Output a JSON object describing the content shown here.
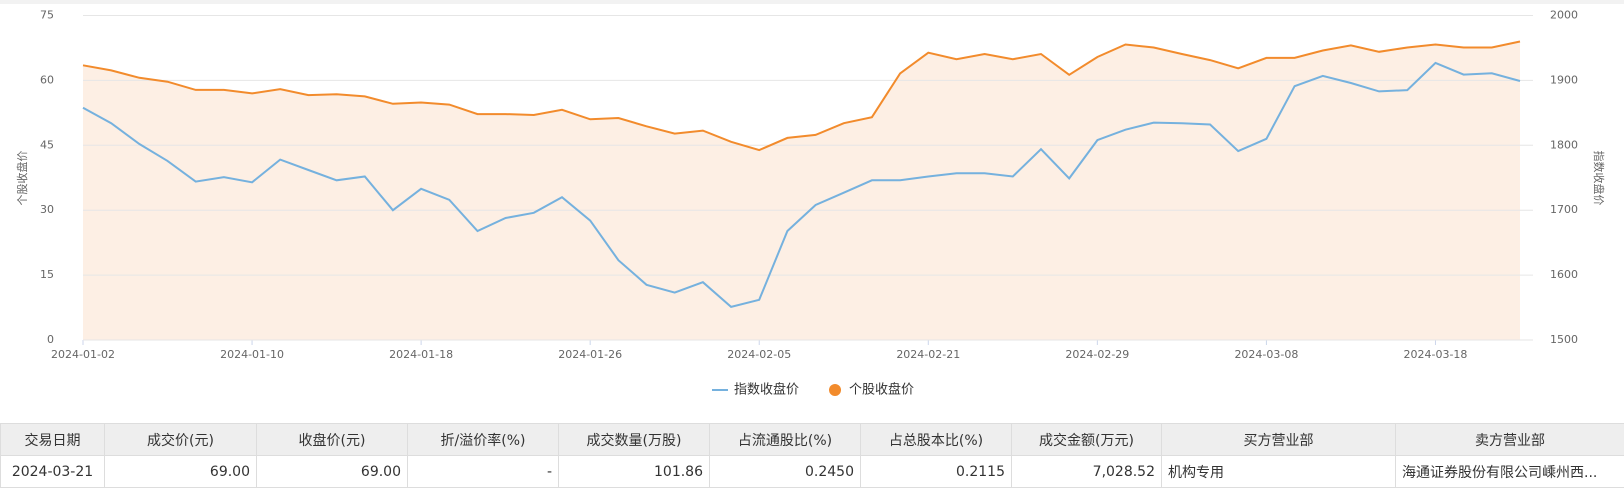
{
  "chart_data": {
    "type": "line",
    "categories": [
      "2024-01-02",
      null,
      null,
      null,
      null,
      null,
      "2024-01-10",
      null,
      null,
      null,
      null,
      null,
      "2024-01-18",
      null,
      null,
      null,
      null,
      null,
      "2024-01-26",
      null,
      null,
      null,
      null,
      null,
      "2024-02-05",
      null,
      null,
      null,
      null,
      null,
      "2024-02-21",
      null,
      null,
      null,
      null,
      null,
      "2024-02-29",
      null,
      null,
      null,
      null,
      null,
      "2024-03-08",
      null,
      null,
      null,
      null,
      null,
      "2024-03-18",
      null,
      null,
      null
    ],
    "ylabel": "个股收盘价",
    "y2label": "指数收盘价",
    "ylim": [
      0,
      75
    ],
    "yticks": [
      0,
      15,
      30,
      45,
      60,
      75
    ],
    "y2lim": [
      1500,
      2000
    ],
    "y2ticks": [
      1500,
      1600,
      1700,
      1800,
      1900,
      2000
    ],
    "grid": true,
    "legend": "bottom",
    "series": [
      {
        "name": "指数收盘价",
        "color": "#75b1de",
        "axis": "y2",
        "legend_symbol": "line",
        "values": [
          1858,
          1834,
          1802,
          1776,
          1744,
          1751,
          1743,
          1778,
          1762,
          1746,
          1752,
          1700,
          1733,
          1716,
          1668,
          1688,
          1696,
          1720,
          1684,
          1623,
          1585,
          1573,
          1589,
          1551,
          1562,
          1668,
          1708,
          1727,
          1746,
          1746,
          1752,
          1757,
          1757,
          1752,
          1794,
          1749,
          1808,
          1824,
          1835,
          1834,
          1832,
          1791,
          1810,
          1891,
          1907,
          1896,
          1883,
          1885,
          1927,
          1909,
          1911,
          1899
        ]
      },
      {
        "name": "个股收盘价",
        "color": "#f28b2c",
        "axis": "y",
        "area": true,
        "area_color": "#fdefe4",
        "legend_symbol": "circle",
        "values": [
          63.5,
          62.3,
          60.6,
          59.7,
          57.8,
          57.8,
          57.0,
          58.0,
          56.6,
          56.8,
          56.3,
          54.6,
          54.9,
          54.4,
          52.2,
          52.2,
          52.0,
          53.2,
          51.0,
          51.3,
          49.4,
          47.7,
          48.4,
          45.8,
          43.9,
          46.7,
          47.4,
          50.1,
          51.5,
          61.6,
          66.4,
          64.9,
          66.1,
          64.9,
          66.1,
          61.3,
          65.4,
          68.3,
          67.6,
          66.1,
          64.7,
          62.8,
          65.2,
          65.2,
          66.9,
          68.1,
          66.6,
          67.6,
          68.3,
          67.6,
          67.6,
          69.0
        ]
      }
    ]
  },
  "table": {
    "columns": [
      "交易日期",
      "成交价(元)",
      "收盘价(元)",
      "折/溢价率(%)",
      "成交数量(万股)",
      "占流通股比(%)",
      "占总股本比(%)",
      "成交金额(万元)",
      "买方营业部",
      "卖方营业部"
    ],
    "rows": [
      [
        "2024-03-21",
        "69.00",
        "69.00",
        "-",
        "101.86",
        "0.2450",
        "0.2115",
        "7,028.52",
        "机构专用",
        "海通证券股份有限公司嵊州西..."
      ]
    ]
  }
}
